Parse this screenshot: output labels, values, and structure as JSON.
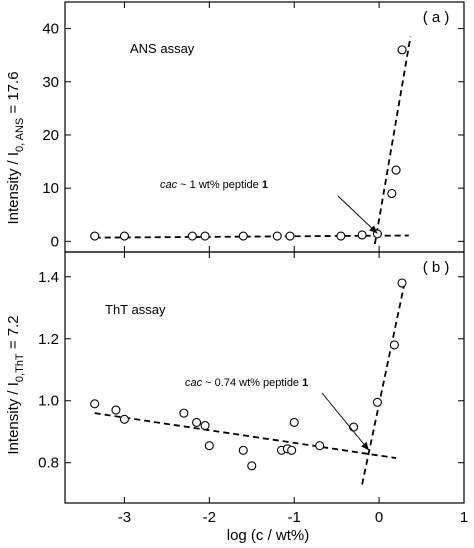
{
  "chart_data": [
    {
      "panel": "(a)",
      "type": "scatter",
      "annotation_title": "ANS assay",
      "xlim": [
        -3.7,
        1.0
      ],
      "ylim": [
        -2,
        45
      ],
      "yticks": [
        0,
        10,
        20,
        30,
        40
      ],
      "grid": false,
      "points": [
        {
          "x": -3.35,
          "y": 1.0
        },
        {
          "x": -3.0,
          "y": 1.0
        },
        {
          "x": -2.2,
          "y": 1.0
        },
        {
          "x": -2.05,
          "y": 1.0
        },
        {
          "x": -1.6,
          "y": 1.0
        },
        {
          "x": -1.2,
          "y": 1.0
        },
        {
          "x": -1.05,
          "y": 1.0
        },
        {
          "x": -0.45,
          "y": 1.0
        },
        {
          "x": -0.2,
          "y": 1.2
        },
        {
          "x": -0.02,
          "y": 1.4
        },
        {
          "x": 0.15,
          "y": 9.0
        },
        {
          "x": 0.2,
          "y": 13.4
        },
        {
          "x": 0.27,
          "y": 36.0
        }
      ],
      "fit_lines": [
        {
          "x": [
            -3.35,
            0.35
          ],
          "y": [
            0.7,
            1.1
          ]
        },
        {
          "x": [
            -0.05,
            0.37
          ],
          "y": [
            -0.5,
            38.5
          ]
        }
      ],
      "cac_annotation": {
        "prefix": "cac",
        "text": " ~ 1 wt% peptide ",
        "bold": "1",
        "arrow_to": {
          "x": -0.02,
          "y": 1.5
        }
      }
    },
    {
      "panel": "(b)",
      "type": "scatter",
      "annotation_title": "ThT assay",
      "xlim": [
        -3.7,
        1.0
      ],
      "ylim": [
        0.67,
        1.48
      ],
      "yticks": [
        0.8,
        1.0,
        1.2,
        1.4
      ],
      "yticklabels": [
        "0.8",
        "1.0",
        "1.2",
        "1.4"
      ],
      "grid": false,
      "points": [
        {
          "x": -3.35,
          "y": 0.99
        },
        {
          "x": -3.1,
          "y": 0.97
        },
        {
          "x": -3.0,
          "y": 0.94
        },
        {
          "x": -2.3,
          "y": 0.96
        },
        {
          "x": -2.15,
          "y": 0.93
        },
        {
          "x": -2.05,
          "y": 0.92
        },
        {
          "x": -2.0,
          "y": 0.855
        },
        {
          "x": -1.6,
          "y": 0.84
        },
        {
          "x": -1.5,
          "y": 0.79
        },
        {
          "x": -1.15,
          "y": 0.84
        },
        {
          "x": -1.08,
          "y": 0.845
        },
        {
          "x": -1.03,
          "y": 0.84
        },
        {
          "x": -1.0,
          "y": 0.93
        },
        {
          "x": -0.7,
          "y": 0.855
        },
        {
          "x": -0.3,
          "y": 0.915
        },
        {
          "x": -0.02,
          "y": 0.995
        },
        {
          "x": 0.18,
          "y": 1.18
        },
        {
          "x": 0.27,
          "y": 1.38
        }
      ],
      "fit_lines": [
        {
          "x": [
            -3.35,
            0.2
          ],
          "y": [
            0.96,
            0.815
          ]
        },
        {
          "x": [
            -0.2,
            0.3
          ],
          "y": [
            0.73,
            1.38
          ]
        }
      ],
      "cac_annotation": {
        "prefix": "cac",
        "text": " ~ 0.74 wt% peptide ",
        "bold": "1",
        "arrow_to": {
          "x": -0.12,
          "y": 0.84
        }
      }
    }
  ],
  "shared": {
    "xticks": [
      -3,
      -2,
      -1,
      0,
      1
    ],
    "xticklabels": [
      "-3",
      "-2",
      "-1",
      "0",
      "1"
    ],
    "xlabel": "log (c / wt%)"
  },
  "ylabel_a": "Intensity / I",
  "ylabel_a_sub": "0, ANS",
  "ylabel_a_tail": " = 17.6",
  "ylabel_b": "Intensity / I",
  "ylabel_b_sub": "0,ThT",
  "ylabel_b_tail": " = 7.2"
}
